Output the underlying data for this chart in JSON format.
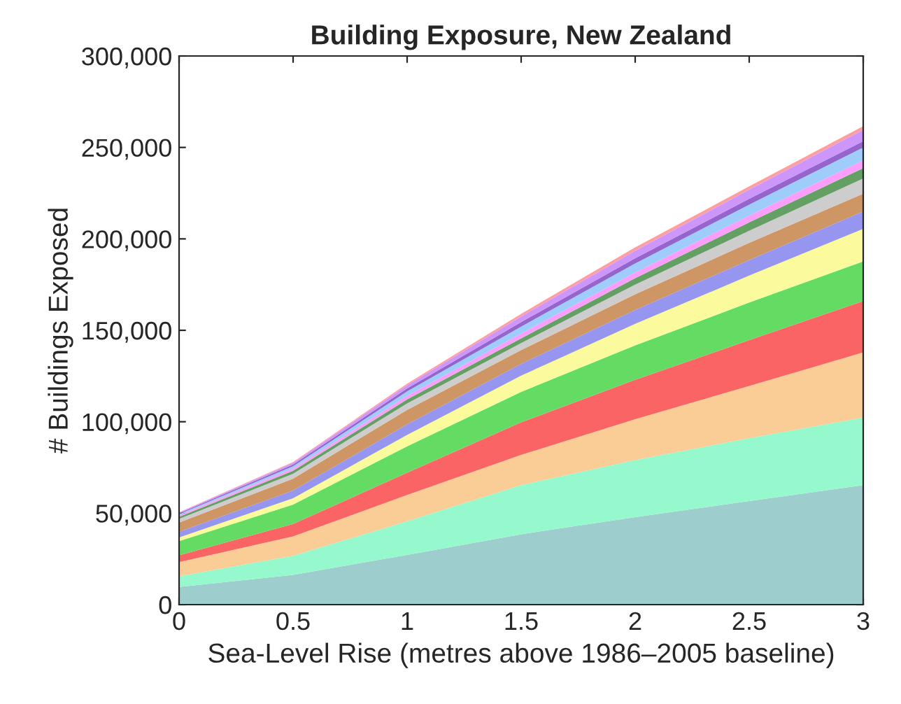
{
  "chart_data": {
    "type": "area",
    "stacked": true,
    "title": "Building Exposure, New Zealand",
    "xlabel": "Sea-Level Rise (metres above 1986–2005 baseline)",
    "ylabel": "# Buildings Exposed",
    "x": [
      0,
      0.5,
      1,
      1.5,
      2,
      2.5,
      3
    ],
    "series": [
      {
        "color": "#9ecdcd",
        "values": [
          9700,
          16300,
          27200,
          38500,
          47800,
          56600,
          65300
        ]
      },
      {
        "color": "#96f9cd",
        "values": [
          5800,
          10400,
          18300,
          26800,
          31200,
          34400,
          37000
        ]
      },
      {
        "color": "#fbcd96",
        "values": [
          7700,
          10600,
          14500,
          16600,
          22400,
          28600,
          35600
        ]
      },
      {
        "color": "#fb6464",
        "values": [
          3800,
          6800,
          12100,
          17800,
          21500,
          25000,
          28100
        ]
      },
      {
        "color": "#64dc64",
        "values": [
          7700,
          10600,
          14500,
          16600,
          18900,
          20600,
          21700
        ]
      },
      {
        "color": "#fbfb9e",
        "values": [
          2000,
          3500,
          6200,
          8900,
          11700,
          14700,
          17800
        ]
      },
      {
        "color": "#9696f0",
        "values": [
          3100,
          4200,
          5700,
          6400,
          7600,
          8500,
          9500
        ]
      },
      {
        "color": "#cd9664",
        "values": [
          5100,
          6500,
          8000,
          7600,
          8600,
          9400,
          9700
        ]
      },
      {
        "color": "#cdcdcd",
        "values": [
          2000,
          2700,
          3500,
          3800,
          5300,
          6600,
          8300
        ]
      },
      {
        "color": "#64a064",
        "values": [
          1100,
          1600,
          2200,
          2600,
          3500,
          4600,
          5700
        ]
      },
      {
        "color": "#fb9efb",
        "values": [
          800,
          1200,
          1900,
          2600,
          3100,
          3700,
          4300
        ]
      },
      {
        "color": "#9ecdfb",
        "values": [
          700,
          1300,
          2500,
          3800,
          4900,
          6000,
          7000
        ]
      },
      {
        "color": "#9664cd",
        "values": [
          400,
          900,
          1600,
          2500,
          2900,
          3200,
          3400
        ]
      },
      {
        "color": "#cd96fb",
        "values": [
          400,
          900,
          1800,
          3100,
          4100,
          5000,
          6200
        ]
      },
      {
        "color": "#fba0a0",
        "values": [
          200,
          500,
          800,
          1400,
          1800,
          1800,
          2000
        ]
      }
    ],
    "xlim": [
      0,
      3
    ],
    "xticks": [
      0,
      0.5,
      1,
      1.5,
      2,
      2.5,
      3
    ],
    "ylim": [
      0,
      300000
    ],
    "yticks": [
      0,
      {
        "value": 50000,
        "label": "50,000"
      },
      {
        "value": 100000,
        "label": "100,000"
      },
      {
        "value": 150000,
        "label": "150,000"
      },
      {
        "value": 200000,
        "label": "200,000"
      },
      {
        "value": 250000,
        "label": "250,000"
      },
      {
        "value": 300000,
        "label": "300,000"
      }
    ],
    "grid": false,
    "legend": false
  }
}
